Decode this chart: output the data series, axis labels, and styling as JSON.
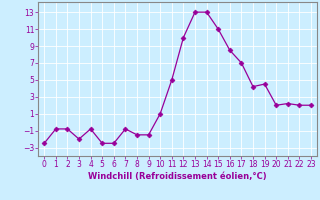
{
  "x": [
    0,
    1,
    2,
    3,
    4,
    5,
    6,
    7,
    8,
    9,
    10,
    11,
    12,
    13,
    14,
    15,
    16,
    17,
    18,
    19,
    20,
    21,
    22,
    23
  ],
  "y": [
    -2.5,
    -0.8,
    -0.8,
    -2.0,
    -0.8,
    -2.5,
    -2.5,
    -0.8,
    -1.5,
    -1.5,
    1.0,
    5.0,
    10.0,
    13.0,
    13.0,
    11.0,
    8.5,
    7.0,
    4.2,
    4.5,
    2.0,
    2.2,
    2.0,
    2.0
  ],
  "line_color": "#990099",
  "marker": "D",
  "marker_size": 2.5,
  "bg_color": "#cceeff",
  "grid_color": "#ffffff",
  "xlabel": "Windchill (Refroidissement éolien,°C)",
  "xlabel_fontsize": 6,
  "tick_fontsize": 5.5,
  "yticks": [
    -3,
    -1,
    1,
    3,
    5,
    7,
    9,
    11,
    13
  ],
  "xticks": [
    0,
    1,
    2,
    3,
    4,
    5,
    6,
    7,
    8,
    9,
    10,
    11,
    12,
    13,
    14,
    15,
    16,
    17,
    18,
    19,
    20,
    21,
    22,
    23
  ],
  "ylim": [
    -4,
    14.2
  ],
  "xlim": [
    -0.5,
    23.5
  ]
}
